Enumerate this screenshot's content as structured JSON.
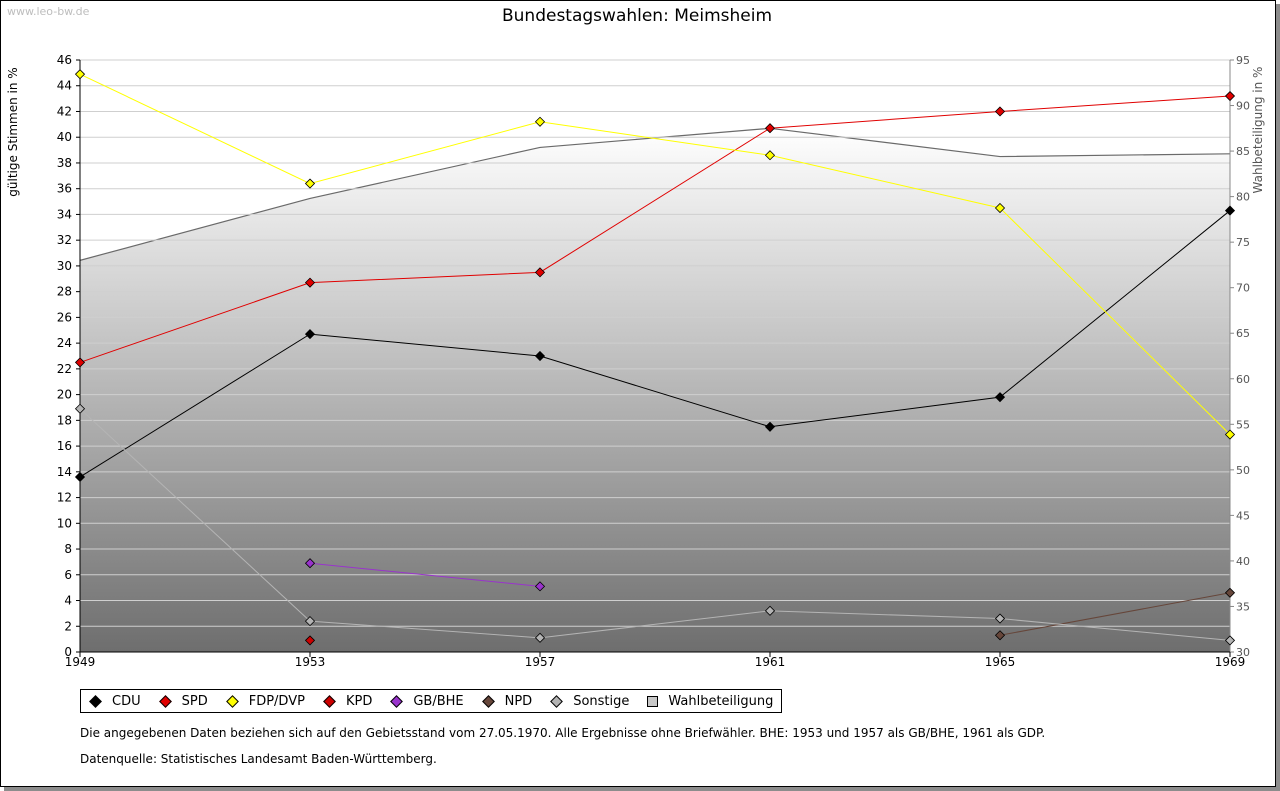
{
  "watermark": "www.leo-bw.de",
  "chart_data": {
    "type": "line",
    "title": "Bundestagswahlen: Meimsheim",
    "ylabel": "gültige Stimmen in %",
    "y2label": "Wahlbeteiligung in %",
    "x": [
      1949,
      1953,
      1957,
      1961,
      1965,
      1969
    ],
    "ylim": [
      0,
      46
    ],
    "y2lim": [
      30,
      95
    ],
    "yticks": [
      0,
      2,
      4,
      6,
      8,
      10,
      12,
      14,
      16,
      18,
      20,
      22,
      24,
      26,
      28,
      30,
      32,
      34,
      36,
      38,
      40,
      42,
      44,
      46
    ],
    "y2ticks": [
      30,
      35,
      40,
      45,
      50,
      55,
      60,
      65,
      70,
      75,
      80,
      85,
      90,
      95
    ],
    "grid": true,
    "series": [
      {
        "name": "CDU",
        "color": "#000000",
        "values": [
          13.6,
          24.7,
          23.0,
          17.5,
          19.8,
          34.3
        ]
      },
      {
        "name": "SPD",
        "color": "#e00000",
        "values": [
          22.5,
          28.7,
          29.5,
          40.7,
          42.0,
          43.2
        ]
      },
      {
        "name": "FDP/DVP",
        "color": "#ffff00",
        "values": [
          44.9,
          36.4,
          41.2,
          38.6,
          34.5,
          16.9
        ]
      },
      {
        "name": "KPD",
        "color": "#cc0000",
        "values": [
          null,
          0.9,
          null,
          null,
          null,
          null
        ]
      },
      {
        "name": "GB/BHE",
        "color": "#9933cc",
        "values": [
          null,
          6.9,
          5.1,
          null,
          null,
          null
        ]
      },
      {
        "name": "NPD",
        "color": "#66463a",
        "values": [
          null,
          null,
          null,
          null,
          1.3,
          4.6
        ]
      },
      {
        "name": "Sonstige",
        "color": "#b4b4b4",
        "values": [
          18.9,
          2.4,
          1.1,
          3.2,
          2.6,
          0.9
        ]
      }
    ],
    "turnout": {
      "name": "Wahlbeteiligung",
      "values": [
        73.0,
        79.8,
        85.4,
        87.5,
        84.4,
        84.7
      ]
    }
  },
  "notes": {
    "line1": "Die angegebenen Daten beziehen sich auf den Gebietsstand vom 27.05.1970. Alle Ergebnisse ohne Briefwähler. BHE: 1953 und 1957 als GB/BHE, 1961 als GDP.",
    "line2": "Datenquelle: Statistisches Landesamt Baden-Württemberg."
  }
}
